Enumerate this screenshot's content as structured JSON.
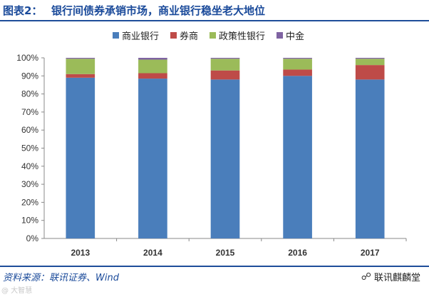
{
  "header": {
    "figure_label": "图表2：",
    "title": "银行间债券承销市场，商业银行稳坐老大地位"
  },
  "legend": [
    {
      "label": "商业银行",
      "color": "#4a7ebb"
    },
    {
      "label": "券商",
      "color": "#be4b48"
    },
    {
      "label": "政策性银行",
      "color": "#9bbb59"
    },
    {
      "label": "中金",
      "color": "#7f63a2"
    }
  ],
  "chart_data": {
    "type": "bar",
    "stacked": true,
    "title": "",
    "xlabel": "",
    "ylabel": "",
    "categories": [
      "2013",
      "2014",
      "2015",
      "2016",
      "2017"
    ],
    "series": [
      {
        "name": "商业银行",
        "values": [
          89,
          88.5,
          88,
          90,
          88
        ]
      },
      {
        "name": "券商",
        "values": [
          2,
          3,
          5,
          3.5,
          8
        ]
      },
      {
        "name": "政策性银行",
        "values": [
          8.5,
          7.5,
          6.5,
          6,
          3.5
        ]
      },
      {
        "name": "中金",
        "values": [
          0.5,
          1,
          0.5,
          0.5,
          0.5
        ]
      }
    ],
    "ylim": [
      0,
      100
    ],
    "yticks": [
      "0%",
      "10%",
      "20%",
      "30%",
      "40%",
      "50%",
      "60%",
      "70%",
      "80%",
      "90%",
      "100%"
    ],
    "grid": false,
    "legend_position": "top"
  },
  "footer": {
    "source": "资料来源：联讯证券、Wind",
    "brand": "联讯麒麟堂",
    "brand_icon": "wechat-icon",
    "watermark": "@ 大智慧"
  }
}
